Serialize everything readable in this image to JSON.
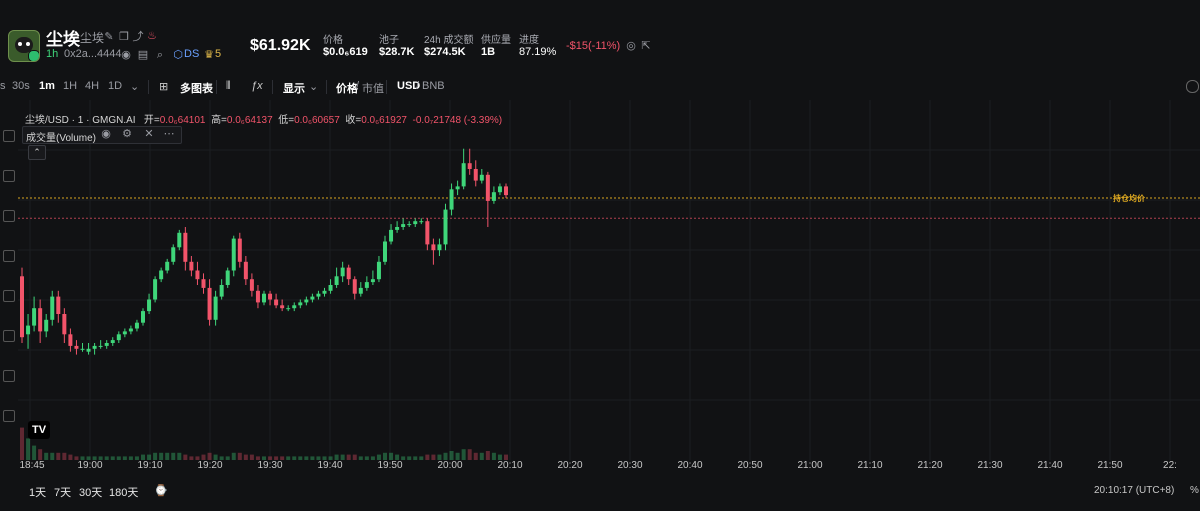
{
  "header": {
    "token_name": "尘埃",
    "token_sub": "尘埃",
    "age": "1h",
    "address": "0x2a...4444",
    "ds_label": "DS",
    "crown_count": "5",
    "market_cap": "$61.92K",
    "stats": [
      {
        "label": "价格",
        "value": "$0.0₆619"
      },
      {
        "label": "池子",
        "value": "$28.7K"
      },
      {
        "label": "24h 成交额",
        "value": "$274.5K"
      },
      {
        "label": "供应量",
        "value": "1B"
      },
      {
        "label": "进度",
        "value": "87.19%"
      }
    ],
    "pnl": "-$15(-11%)"
  },
  "toolbar": {
    "intervals": [
      "s",
      "30s",
      "1m",
      "1H",
      "4H",
      "1D"
    ],
    "active_interval": "1m",
    "multi_chart": "多图表",
    "display": "显示",
    "price_label": "价格",
    "mcap_label": "市值",
    "usd_label": "USD",
    "bnb_label": "BNB"
  },
  "legend": {
    "symbol": "尘埃/USD · 1 · GMGN.AI",
    "open_k": "开=",
    "open_v": "0.0₆64101",
    "high_k": "高=",
    "high_v": "0.0₆64137",
    "low_k": "低=",
    "low_v": "0.0₆60657",
    "close_k": "收=",
    "close_v": "0.0₆61927",
    "change": "-0.0₇21748 (-3.39%)",
    "volume_label": "成交量(Volume)"
  },
  "chart_data": {
    "type": "candlestick",
    "x_ticks": [
      "18:45",
      "19:00",
      "19:10",
      "19:20",
      "19:30",
      "19:40",
      "19:50",
      "20:00",
      "20:10",
      "20:20",
      "20:30",
      "20:40",
      "20:50",
      "21:00",
      "21:10",
      "21:20",
      "21:30",
      "21:40",
      "21:50",
      "22:"
    ],
    "avg_line_label": "持仓均价",
    "candles": [
      {
        "o": 0.53,
        "c": 0.32,
        "h": 0.56,
        "l": 0.3
      },
      {
        "o": 0.33,
        "c": 0.36,
        "h": 0.4,
        "l": 0.28
      },
      {
        "o": 0.36,
        "c": 0.42,
        "h": 0.46,
        "l": 0.34
      },
      {
        "o": 0.42,
        "c": 0.34,
        "h": 0.45,
        "l": 0.3
      },
      {
        "o": 0.34,
        "c": 0.38,
        "h": 0.4,
        "l": 0.32
      },
      {
        "o": 0.38,
        "c": 0.46,
        "h": 0.48,
        "l": 0.36
      },
      {
        "o": 0.46,
        "c": 0.4,
        "h": 0.48,
        "l": 0.37
      },
      {
        "o": 0.4,
        "c": 0.33,
        "h": 0.42,
        "l": 0.3
      },
      {
        "o": 0.33,
        "c": 0.29,
        "h": 0.35,
        "l": 0.27
      },
      {
        "o": 0.29,
        "c": 0.28,
        "h": 0.31,
        "l": 0.26
      },
      {
        "o": 0.28,
        "c": 0.28,
        "h": 0.3,
        "l": 0.27
      },
      {
        "o": 0.27,
        "c": 0.28,
        "h": 0.3,
        "l": 0.26
      },
      {
        "o": 0.28,
        "c": 0.29,
        "h": 0.3,
        "l": 0.26
      },
      {
        "o": 0.29,
        "c": 0.29,
        "h": 0.31,
        "l": 0.28
      },
      {
        "o": 0.29,
        "c": 0.3,
        "h": 0.31,
        "l": 0.28
      },
      {
        "o": 0.3,
        "c": 0.31,
        "h": 0.32,
        "l": 0.29
      },
      {
        "o": 0.31,
        "c": 0.33,
        "h": 0.34,
        "l": 0.3
      },
      {
        "o": 0.33,
        "c": 0.34,
        "h": 0.35,
        "l": 0.32
      },
      {
        "o": 0.34,
        "c": 0.35,
        "h": 0.36,
        "l": 0.33
      },
      {
        "o": 0.35,
        "c": 0.37,
        "h": 0.38,
        "l": 0.34
      },
      {
        "o": 0.37,
        "c": 0.41,
        "h": 0.42,
        "l": 0.36
      },
      {
        "o": 0.41,
        "c": 0.45,
        "h": 0.47,
        "l": 0.4
      },
      {
        "o": 0.45,
        "c": 0.52,
        "h": 0.53,
        "l": 0.44
      },
      {
        "o": 0.52,
        "c": 0.55,
        "h": 0.56,
        "l": 0.51
      },
      {
        "o": 0.55,
        "c": 0.58,
        "h": 0.59,
        "l": 0.54
      },
      {
        "o": 0.58,
        "c": 0.63,
        "h": 0.64,
        "l": 0.57
      },
      {
        "o": 0.63,
        "c": 0.68,
        "h": 0.69,
        "l": 0.62
      },
      {
        "o": 0.68,
        "c": 0.58,
        "h": 0.7,
        "l": 0.55
      },
      {
        "o": 0.58,
        "c": 0.55,
        "h": 0.6,
        "l": 0.53
      },
      {
        "o": 0.55,
        "c": 0.52,
        "h": 0.58,
        "l": 0.5
      },
      {
        "o": 0.52,
        "c": 0.49,
        "h": 0.54,
        "l": 0.47
      },
      {
        "o": 0.49,
        "c": 0.38,
        "h": 0.52,
        "l": 0.36
      },
      {
        "o": 0.38,
        "c": 0.46,
        "h": 0.48,
        "l": 0.36
      },
      {
        "o": 0.46,
        "c": 0.5,
        "h": 0.52,
        "l": 0.45
      },
      {
        "o": 0.5,
        "c": 0.55,
        "h": 0.56,
        "l": 0.49
      },
      {
        "o": 0.55,
        "c": 0.66,
        "h": 0.67,
        "l": 0.53
      },
      {
        "o": 0.66,
        "c": 0.58,
        "h": 0.68,
        "l": 0.56
      },
      {
        "o": 0.58,
        "c": 0.52,
        "h": 0.6,
        "l": 0.5
      },
      {
        "o": 0.52,
        "c": 0.48,
        "h": 0.54,
        "l": 0.46
      },
      {
        "o": 0.48,
        "c": 0.44,
        "h": 0.5,
        "l": 0.42
      },
      {
        "o": 0.44,
        "c": 0.47,
        "h": 0.48,
        "l": 0.43
      },
      {
        "o": 0.47,
        "c": 0.45,
        "h": 0.48,
        "l": 0.43
      },
      {
        "o": 0.45,
        "c": 0.43,
        "h": 0.47,
        "l": 0.42
      },
      {
        "o": 0.43,
        "c": 0.42,
        "h": 0.45,
        "l": 0.41
      },
      {
        "o": 0.42,
        "c": 0.42,
        "h": 0.43,
        "l": 0.41
      },
      {
        "o": 0.42,
        "c": 0.43,
        "h": 0.44,
        "l": 0.41
      },
      {
        "o": 0.43,
        "c": 0.44,
        "h": 0.45,
        "l": 0.42
      },
      {
        "o": 0.44,
        "c": 0.45,
        "h": 0.46,
        "l": 0.43
      },
      {
        "o": 0.45,
        "c": 0.46,
        "h": 0.47,
        "l": 0.44
      },
      {
        "o": 0.46,
        "c": 0.47,
        "h": 0.48,
        "l": 0.45
      },
      {
        "o": 0.47,
        "c": 0.48,
        "h": 0.49,
        "l": 0.46
      },
      {
        "o": 0.48,
        "c": 0.5,
        "h": 0.52,
        "l": 0.47
      },
      {
        "o": 0.5,
        "c": 0.53,
        "h": 0.56,
        "l": 0.49
      },
      {
        "o": 0.53,
        "c": 0.56,
        "h": 0.58,
        "l": 0.51
      },
      {
        "o": 0.56,
        "c": 0.52,
        "h": 0.57,
        "l": 0.5
      },
      {
        "o": 0.52,
        "c": 0.47,
        "h": 0.53,
        "l": 0.45
      },
      {
        "o": 0.47,
        "c": 0.49,
        "h": 0.51,
        "l": 0.46
      },
      {
        "o": 0.49,
        "c": 0.51,
        "h": 0.53,
        "l": 0.48
      },
      {
        "o": 0.51,
        "c": 0.52,
        "h": 0.55,
        "l": 0.5
      },
      {
        "o": 0.52,
        "c": 0.58,
        "h": 0.6,
        "l": 0.51
      },
      {
        "o": 0.58,
        "c": 0.65,
        "h": 0.67,
        "l": 0.57
      },
      {
        "o": 0.65,
        "c": 0.69,
        "h": 0.71,
        "l": 0.64
      },
      {
        "o": 0.69,
        "c": 0.7,
        "h": 0.72,
        "l": 0.68
      },
      {
        "o": 0.7,
        "c": 0.71,
        "h": 0.73,
        "l": 0.69
      },
      {
        "o": 0.71,
        "c": 0.71,
        "h": 0.72,
        "l": 0.7
      },
      {
        "o": 0.71,
        "c": 0.72,
        "h": 0.73,
        "l": 0.7
      },
      {
        "o": 0.72,
        "c": 0.72,
        "h": 0.73,
        "l": 0.71
      },
      {
        "o": 0.72,
        "c": 0.64,
        "h": 0.73,
        "l": 0.62
      },
      {
        "o": 0.64,
        "c": 0.62,
        "h": 0.66,
        "l": 0.57
      },
      {
        "o": 0.62,
        "c": 0.64,
        "h": 0.66,
        "l": 0.6
      },
      {
        "o": 0.64,
        "c": 0.76,
        "h": 0.78,
        "l": 0.62
      },
      {
        "o": 0.76,
        "c": 0.83,
        "h": 0.85,
        "l": 0.74
      },
      {
        "o": 0.83,
        "c": 0.84,
        "h": 0.86,
        "l": 0.81
      },
      {
        "o": 0.84,
        "c": 0.92,
        "h": 0.97,
        "l": 0.83
      },
      {
        "o": 0.92,
        "c": 0.9,
        "h": 0.97,
        "l": 0.88
      },
      {
        "o": 0.9,
        "c": 0.86,
        "h": 0.93,
        "l": 0.84
      },
      {
        "o": 0.86,
        "c": 0.88,
        "h": 0.9,
        "l": 0.85
      },
      {
        "o": 0.88,
        "c": 0.79,
        "h": 0.89,
        "l": 0.7
      },
      {
        "o": 0.79,
        "c": 0.82,
        "h": 0.84,
        "l": 0.78
      },
      {
        "o": 0.82,
        "c": 0.84,
        "h": 0.85,
        "l": 0.81
      },
      {
        "o": 0.84,
        "c": 0.81,
        "h": 0.85,
        "l": 0.8
      }
    ],
    "volume": [
      0.9,
      0.6,
      0.4,
      0.3,
      0.2,
      0.2,
      0.2,
      0.2,
      0.15,
      0.1,
      0.1,
      0.1,
      0.1,
      0.1,
      0.1,
      0.1,
      0.1,
      0.1,
      0.1,
      0.1,
      0.15,
      0.15,
      0.2,
      0.2,
      0.2,
      0.2,
      0.2,
      0.15,
      0.1,
      0.1,
      0.15,
      0.2,
      0.15,
      0.1,
      0.1,
      0.2,
      0.2,
      0.15,
      0.15,
      0.1,
      0.1,
      0.1,
      0.1,
      0.1,
      0.1,
      0.1,
      0.1,
      0.1,
      0.1,
      0.1,
      0.1,
      0.1,
      0.15,
      0.15,
      0.15,
      0.15,
      0.1,
      0.1,
      0.1,
      0.15,
      0.2,
      0.2,
      0.15,
      0.1,
      0.1,
      0.1,
      0.1,
      0.15,
      0.15,
      0.15,
      0.2,
      0.25,
      0.2,
      0.3,
      0.3,
      0.2,
      0.2,
      0.25,
      0.2,
      0.15,
      0.15
    ],
    "avg_price_level": 0.8,
    "current_price_level": 0.73
  },
  "bottom": {
    "ranges": [
      "1天",
      "7天",
      "30天",
      "180天"
    ],
    "clock": "20:10:17 (UTC+8)",
    "percent": "%"
  },
  "colors": {
    "up": "#3fd67a",
    "down": "#f2546a",
    "avg_line": "#d9a520",
    "current_line": "#f2546a"
  }
}
